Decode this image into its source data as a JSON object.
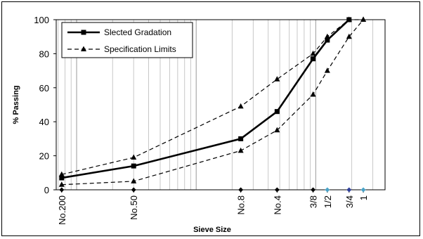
{
  "chart_data": {
    "type": "line",
    "xscale": "log",
    "xlabel": "Sieve Size",
    "ylabel": "% Passing",
    "ylim": [
      0,
      100
    ],
    "yticks": [
      0,
      20,
      40,
      60,
      80,
      100
    ],
    "xticks": [
      {
        "label": "No.200",
        "size_mm": 0.075
      },
      {
        "label": "No.50",
        "size_mm": 0.3
      },
      {
        "label": "No.8",
        "size_mm": 2.36
      },
      {
        "label": "No.4",
        "size_mm": 4.75
      },
      {
        "label": "3/8",
        "size_mm": 9.5
      },
      {
        "label": "1/2",
        "size_mm": 12.5
      },
      {
        "label": "3/4",
        "size_mm": 19.0
      },
      {
        "label": "1",
        "size_mm": 25.0
      }
    ],
    "grid": true,
    "legend_position": "top-left",
    "series": [
      {
        "name": "Slected Gradation",
        "style": "solid",
        "marker": "square",
        "color": "#000000",
        "points": [
          [
            0.075,
            7
          ],
          [
            0.3,
            14
          ],
          [
            2.36,
            30
          ],
          [
            4.75,
            46
          ],
          [
            9.5,
            77
          ],
          [
            12.5,
            88
          ],
          [
            19.0,
            100
          ]
        ]
      },
      {
        "name": "Specification Limits",
        "style": "dashed",
        "marker": "triangle",
        "color": "#000000",
        "points": [
          [
            0.075,
            9
          ],
          [
            0.3,
            19
          ],
          [
            2.36,
            49
          ],
          [
            4.75,
            65
          ],
          [
            9.5,
            80
          ],
          [
            12.5,
            90
          ],
          [
            19.0,
            100
          ],
          [
            25.0,
            100
          ]
        ]
      },
      {
        "name": "",
        "legend": false,
        "style": "dashed",
        "marker": "triangle",
        "color": "#000000",
        "points": [
          [
            0.075,
            3
          ],
          [
            0.3,
            5
          ],
          [
            2.36,
            23
          ],
          [
            4.75,
            35
          ],
          [
            9.5,
            56
          ],
          [
            12.5,
            70
          ],
          [
            19.0,
            90
          ],
          [
            25.0,
            100
          ]
        ]
      }
    ],
    "baseline_markers": [
      {
        "size_mm": 0.075,
        "color": "#000000"
      },
      {
        "size_mm": 0.3,
        "color": "#000000"
      },
      {
        "size_mm": 2.36,
        "color": "#000000"
      },
      {
        "size_mm": 4.75,
        "color": "#000000"
      },
      {
        "size_mm": 9.5,
        "color": "#000000"
      },
      {
        "size_mm": 12.5,
        "color": "#4aa3c8"
      },
      {
        "size_mm": 19.0,
        "color": "#2f3f9a"
      },
      {
        "size_mm": 25.0,
        "color": "#4aa3c8"
      }
    ]
  }
}
